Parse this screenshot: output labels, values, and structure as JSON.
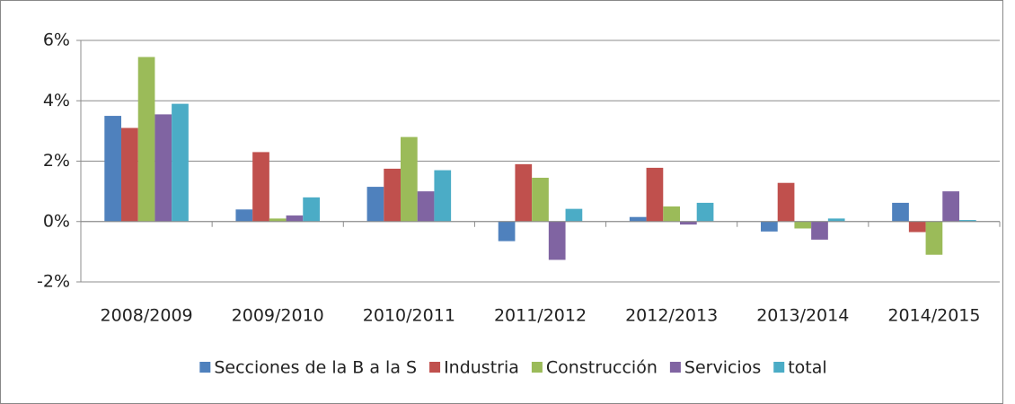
{
  "chart_data": {
    "type": "bar",
    "categories": [
      "2008/2009",
      "2009/2010",
      "2010/2011",
      "2011/2012",
      "2012/2013",
      "2013/2014",
      "2014/2015"
    ],
    "series": [
      {
        "name": "Secciones de la B a la S",
        "color": "#4f81bd",
        "values": [
          3.5,
          0.4,
          1.15,
          -0.65,
          0.15,
          -0.33,
          0.62
        ]
      },
      {
        "name": "Industria",
        "color": "#c0504d",
        "values": [
          3.1,
          2.3,
          1.75,
          1.9,
          1.78,
          1.28,
          -0.35
        ]
      },
      {
        "name": "Construcción",
        "color": "#9bbb59",
        "values": [
          5.45,
          0.1,
          2.8,
          1.45,
          0.5,
          -0.23,
          -1.1
        ]
      },
      {
        "name": "Servicios",
        "color": "#8064a2",
        "values": [
          3.55,
          0.2,
          1.0,
          -1.27,
          -0.1,
          -0.6,
          1.0
        ]
      },
      {
        "name": "total",
        "color": "#4bacc6",
        "values": [
          3.9,
          0.8,
          1.7,
          0.42,
          0.62,
          0.1,
          0.05
        ]
      }
    ],
    "ylim": [
      -2,
      6
    ],
    "yticks": [
      {
        "value": -2,
        "label": "-2%"
      },
      {
        "value": 0,
        "label": "0%"
      },
      {
        "value": 2,
        "label": "2%"
      },
      {
        "value": 4,
        "label": "4%"
      },
      {
        "value": 6,
        "label": "6%"
      }
    ],
    "grid": true,
    "legend": "bottom"
  }
}
